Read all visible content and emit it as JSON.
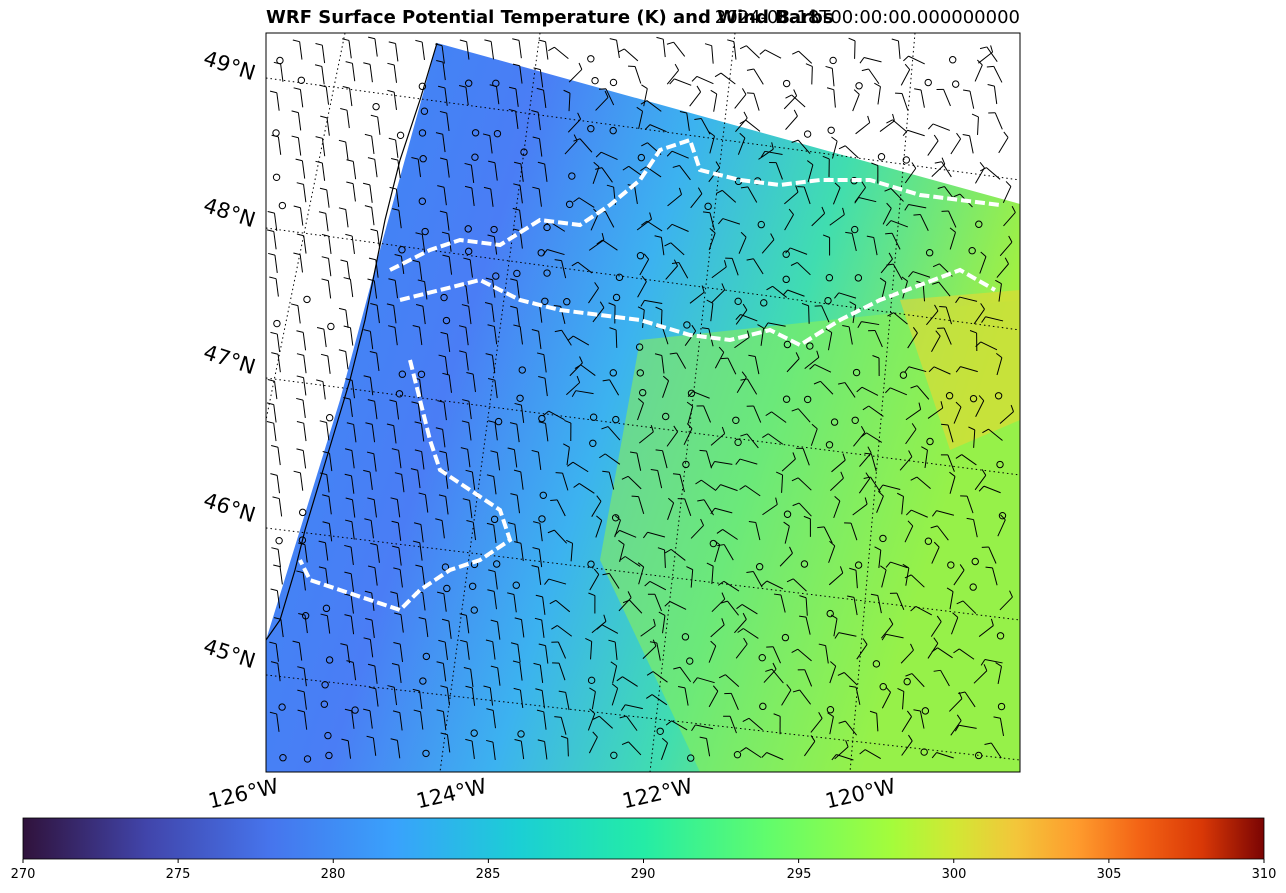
{
  "figure": {
    "title_left": "WRF Surface Potential Temperature (K) and Wind Barbs",
    "title_right": "2024-08-18T00:00:00.000000000",
    "colors": {
      "background": "#ffffff",
      "coastline": "#000000",
      "highlight_contour": "#ffffff"
    }
  },
  "map": {
    "projection": "lambert-conformal",
    "latitude_labels": [
      "49°N",
      "48°N",
      "47°N",
      "46°N",
      "45°N"
    ],
    "longitude_labels": [
      "126°W",
      "124°W",
      "122°W",
      "120°W"
    ],
    "gridline_style": "dotted",
    "colormap": "turbo"
  },
  "colorbar": {
    "min": 270,
    "max": 310,
    "ticks": [
      "270",
      "275",
      "280",
      "285",
      "290",
      "295",
      "300",
      "305",
      "310"
    ],
    "colormap": "turbo"
  }
}
